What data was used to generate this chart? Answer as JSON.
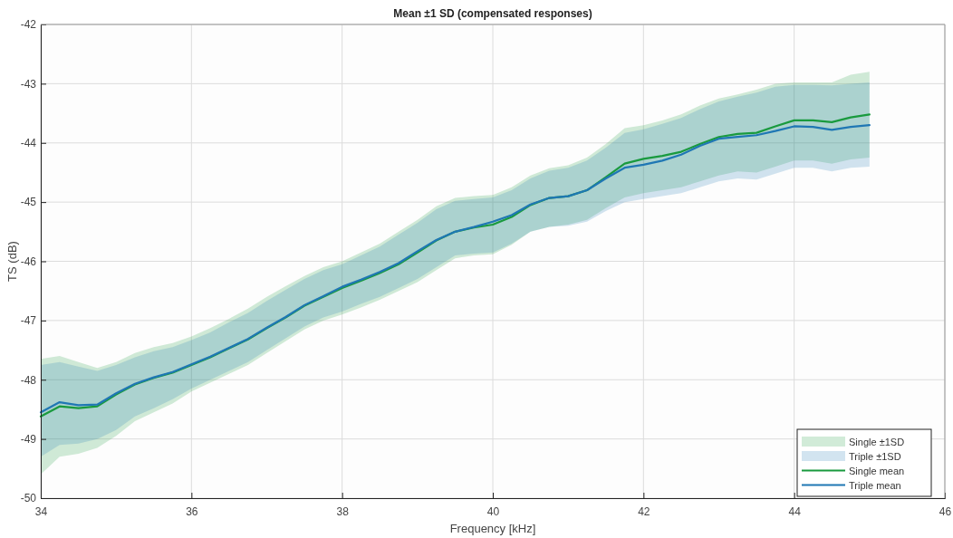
{
  "chart_data": {
    "type": "line",
    "title": "Mean ±1 SD (compensated responses)",
    "xlabel": "Frequency [kHz]",
    "ylabel": "TS (dB)",
    "xlim": [
      34,
      46
    ],
    "xticks": [
      34,
      36,
      38,
      40,
      42,
      44,
      46
    ],
    "ylim": [
      -50,
      -42
    ],
    "yticks": [
      -50,
      -49,
      -48,
      -47,
      -46,
      -45,
      -44,
      -43,
      -42
    ],
    "grid": true,
    "legend": "bottom right",
    "annotations": [
      "Single ±1SD",
      "Triple ±1SD"
    ],
    "x": [
      34,
      34.25,
      34.5,
      34.75,
      35,
      35.25,
      35.5,
      35.75,
      36,
      36.25,
      36.5,
      36.75,
      37,
      37.25,
      37.5,
      37.75,
      38,
      38.25,
      38.5,
      38.75,
      39,
      39.25,
      39.5,
      39.75,
      40,
      40.25,
      40.5,
      40.75,
      41,
      41.25,
      41.5,
      41.75,
      42,
      42.25,
      42.5,
      42.75,
      43,
      43.25,
      43.5,
      43.75,
      44,
      44.25,
      44.5,
      44.75,
      45
    ],
    "series": [
      {
        "name": "Single mean",
        "color": "#199a3e",
        "values": [
          -48.62,
          -48.45,
          -48.48,
          -48.45,
          -48.25,
          -48.08,
          -47.97,
          -47.88,
          -47.75,
          -47.62,
          -47.47,
          -47.32,
          -47.13,
          -46.95,
          -46.75,
          -46.6,
          -46.45,
          -46.33,
          -46.2,
          -46.05,
          -45.85,
          -45.65,
          -45.5,
          -45.43,
          -45.38,
          -45.25,
          -45.05,
          -44.93,
          -44.9,
          -44.8,
          -44.58,
          -44.35,
          -44.27,
          -44.22,
          -44.15,
          -44.02,
          -43.9,
          -43.85,
          -43.83,
          -43.72,
          -43.62,
          -43.62,
          -43.65,
          -43.57,
          -43.52
        ],
        "upper": [
          -47.65,
          -47.6,
          -47.7,
          -47.8,
          -47.7,
          -47.55,
          -47.45,
          -47.38,
          -47.27,
          -47.13,
          -46.97,
          -46.8,
          -46.6,
          -46.42,
          -46.25,
          -46.1,
          -46.0,
          -45.85,
          -45.7,
          -45.5,
          -45.3,
          -45.07,
          -44.93,
          -44.9,
          -44.88,
          -44.75,
          -44.55,
          -44.43,
          -44.38,
          -44.25,
          -44.02,
          -43.75,
          -43.7,
          -43.62,
          -43.52,
          -43.37,
          -43.25,
          -43.18,
          -43.1,
          -43.0,
          -42.98,
          -42.98,
          -42.98,
          -42.85,
          -42.8
        ],
        "lower": [
          -49.6,
          -49.3,
          -49.25,
          -49.15,
          -48.95,
          -48.7,
          -48.55,
          -48.4,
          -48.2,
          -48.05,
          -47.9,
          -47.75,
          -47.55,
          -47.35,
          -47.15,
          -47.0,
          -46.9,
          -46.78,
          -46.65,
          -46.5,
          -46.35,
          -46.15,
          -45.95,
          -45.9,
          -45.88,
          -45.72,
          -45.5,
          -45.42,
          -45.38,
          -45.3,
          -45.1,
          -44.92,
          -44.85,
          -44.8,
          -44.75,
          -44.65,
          -44.55,
          -44.48,
          -44.5,
          -44.4,
          -44.3,
          -44.3,
          -44.35,
          -44.28,
          -44.25
        ]
      },
      {
        "name": "Triple mean",
        "color": "#1f77b4",
        "values": [
          -48.55,
          -48.38,
          -48.43,
          -48.42,
          -48.23,
          -48.07,
          -47.96,
          -47.87,
          -47.74,
          -47.61,
          -47.46,
          -47.31,
          -47.12,
          -46.94,
          -46.74,
          -46.59,
          -46.43,
          -46.31,
          -46.18,
          -46.03,
          -45.83,
          -45.64,
          -45.5,
          -45.42,
          -45.33,
          -45.22,
          -45.04,
          -44.93,
          -44.9,
          -44.8,
          -44.6,
          -44.42,
          -44.37,
          -44.3,
          -44.2,
          -44.05,
          -43.93,
          -43.9,
          -43.87,
          -43.8,
          -43.72,
          -43.73,
          -43.78,
          -43.73,
          -43.7
        ],
        "upper": [
          -47.75,
          -47.7,
          -47.78,
          -47.85,
          -47.75,
          -47.62,
          -47.52,
          -47.45,
          -47.33,
          -47.2,
          -47.03,
          -46.87,
          -46.67,
          -46.48,
          -46.3,
          -46.15,
          -46.05,
          -45.9,
          -45.75,
          -45.55,
          -45.35,
          -45.12,
          -44.98,
          -44.95,
          -44.92,
          -44.8,
          -44.6,
          -44.47,
          -44.42,
          -44.3,
          -44.08,
          -43.83,
          -43.77,
          -43.68,
          -43.58,
          -43.43,
          -43.3,
          -43.22,
          -43.15,
          -43.05,
          -43.02,
          -43.02,
          -43.03,
          -43.0,
          -42.98
        ],
        "lower": [
          -49.3,
          -49.1,
          -49.08,
          -49.0,
          -48.85,
          -48.62,
          -48.48,
          -48.33,
          -48.15,
          -48.0,
          -47.85,
          -47.7,
          -47.5,
          -47.3,
          -47.1,
          -46.95,
          -46.85,
          -46.72,
          -46.6,
          -46.45,
          -46.3,
          -46.1,
          -45.9,
          -45.87,
          -45.85,
          -45.7,
          -45.5,
          -45.42,
          -45.4,
          -45.33,
          -45.15,
          -45.0,
          -44.95,
          -44.9,
          -44.85,
          -44.75,
          -44.65,
          -44.6,
          -44.62,
          -44.52,
          -44.42,
          -44.42,
          -44.48,
          -44.42,
          -44.4
        ]
      }
    ]
  }
}
